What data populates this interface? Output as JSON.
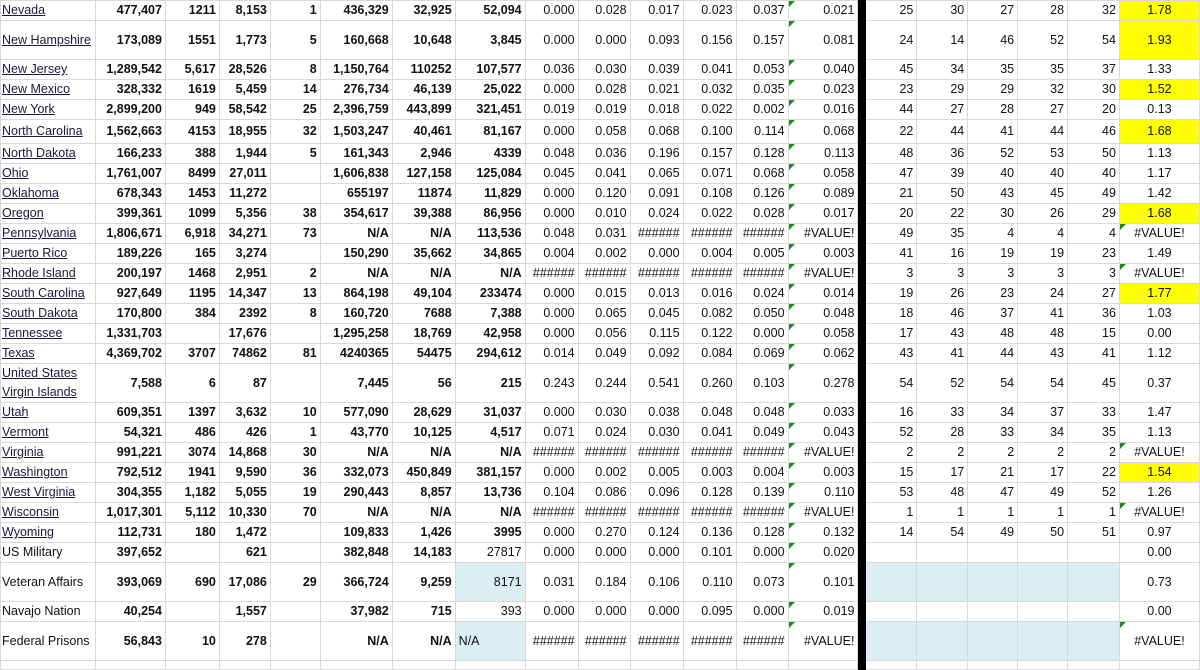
{
  "sheet": {
    "highlight_color": "#ffff00",
    "blank_fill_color": "#daeef3",
    "rows": [
      {
        "name": "Nevada",
        "link": true,
        "c": [
          "477,407",
          "1211",
          "8,153",
          "1",
          "436,329",
          "32,925",
          "52,094",
          "0.000",
          "0.028",
          "0.017",
          "0.023",
          "0.037",
          "0.021",
          "25",
          "30",
          "27",
          "28",
          "32",
          "1.78"
        ],
        "hl": true
      },
      {
        "name": "New Hampshire",
        "link": true,
        "tall": true,
        "c": [
          "173,089",
          "1551",
          "1,773",
          "5",
          "160,668",
          "10,648",
          "3,845",
          "0.000",
          "0.000",
          "0.093",
          "0.156",
          "0.157",
          "0.081",
          "24",
          "14",
          "46",
          "52",
          "54",
          "1.93"
        ],
        "hl": true
      },
      {
        "name": "New Jersey",
        "link": true,
        "c": [
          "1,289,542",
          "5,617",
          "28,526",
          "8",
          "1,150,764",
          "110252",
          "107,577",
          "0.036",
          "0.030",
          "0.039",
          "0.041",
          "0.053",
          "0.040",
          "45",
          "34",
          "35",
          "35",
          "37",
          "1.33"
        ]
      },
      {
        "name": "New Mexico",
        "link": true,
        "c": [
          "328,332",
          "1619",
          "5,459",
          "14",
          "276,734",
          "46,139",
          "25,022",
          "0.000",
          "0.028",
          "0.021",
          "0.032",
          "0.035",
          "0.023",
          "23",
          "29",
          "29",
          "32",
          "30",
          "1.52"
        ],
        "hl": true
      },
      {
        "name": "New York",
        "link": true,
        "c": [
          "2,899,200",
          "949",
          "58,542",
          "25",
          "2,396,759",
          "443,899",
          "321,451",
          "0.019",
          "0.019",
          "0.018",
          "0.022",
          "0.002",
          "0.016",
          "44",
          "27",
          "28",
          "27",
          "20",
          "0.13"
        ]
      },
      {
        "name": "North Carolina",
        "link": true,
        "nc": true,
        "c": [
          "1,562,663",
          "4153",
          "18,955",
          "32",
          "1,503,247",
          "40,461",
          "81,167",
          "0.000",
          "0.058",
          "0.068",
          "0.100",
          "0.114",
          "0.068",
          "22",
          "44",
          "41",
          "44",
          "46",
          "1.68"
        ],
        "hl": true
      },
      {
        "name": "North Dakota",
        "link": true,
        "c": [
          "166,233",
          "388",
          "1,944",
          "5",
          "161,343",
          "2,946",
          "4339",
          "0.048",
          "0.036",
          "0.196",
          "0.157",
          "0.128",
          "0.113",
          "48",
          "36",
          "52",
          "53",
          "50",
          "1.13"
        ]
      },
      {
        "name": "Ohio",
        "link": true,
        "c": [
          "1,761,007",
          "8499",
          "27,011",
          "",
          "1,606,838",
          "127,158",
          "125,084",
          "0.045",
          "0.041",
          "0.065",
          "0.071",
          "0.068",
          "0.058",
          "47",
          "39",
          "40",
          "40",
          "40",
          "1.17"
        ]
      },
      {
        "name": "Oklahoma",
        "link": true,
        "c": [
          "678,343",
          "1453",
          "11,272",
          "",
          "655197",
          "11874",
          "11,829",
          "0.000",
          "0.120",
          "0.091",
          "0.108",
          "0.126",
          "0.089",
          "21",
          "50",
          "43",
          "45",
          "49",
          "1.42"
        ]
      },
      {
        "name": "Oregon",
        "link": true,
        "c": [
          "399,361",
          "1099",
          "5,356",
          "38",
          "354,617",
          "39,388",
          "86,956",
          "0.000",
          "0.010",
          "0.024",
          "0.022",
          "0.028",
          "0.017",
          "20",
          "22",
          "30",
          "26",
          "29",
          "1.68"
        ],
        "hl": true
      },
      {
        "name": "Pennsylvania",
        "link": true,
        "c": [
          "1,806,671",
          "6,918",
          "34,271",
          "73",
          "N/A",
          "N/A",
          "113,536",
          "0.048",
          "0.031",
          "######",
          "######",
          "######",
          "#VALUE!",
          "49",
          "35",
          "4",
          "4",
          "4",
          "#VALUE!"
        ],
        "err": true
      },
      {
        "name": "Puerto Rico",
        "link": true,
        "c": [
          "189,226",
          "165",
          "3,274",
          "",
          "150,290",
          "35,662",
          "34,865",
          "0.004",
          "0.002",
          "0.000",
          "0.004",
          "0.005",
          "0.003",
          "41",
          "16",
          "19",
          "19",
          "23",
          "1.49"
        ]
      },
      {
        "name": "Rhode Island",
        "link": true,
        "c": [
          "200,197",
          "1468",
          "2,951",
          "2",
          "N/A",
          "N/A",
          "N/A",
          "######",
          "######",
          "######",
          "######",
          "######",
          "#VALUE!",
          "3",
          "3",
          "3",
          "3",
          "3",
          "#VALUE!"
        ],
        "err": true
      },
      {
        "name": "South Carolina",
        "link": true,
        "c": [
          "927,649",
          "1195",
          "14,347",
          "13",
          "864,198",
          "49,104",
          "233474",
          "0.000",
          "0.015",
          "0.013",
          "0.016",
          "0.024",
          "0.014",
          "19",
          "26",
          "23",
          "24",
          "27",
          "1.77"
        ],
        "hl": true
      },
      {
        "name": "South Dakota",
        "link": true,
        "c": [
          "170,800",
          "384",
          "2392",
          "8",
          "160,720",
          "7688",
          "7,388",
          "0.000",
          "0.065",
          "0.045",
          "0.082",
          "0.050",
          "0.048",
          "18",
          "46",
          "37",
          "41",
          "36",
          "1.03"
        ]
      },
      {
        "name": "Tennessee",
        "link": true,
        "c": [
          "1,331,703",
          "",
          "17,676",
          "",
          "1,295,258",
          "18,769",
          "42,958",
          "0.000",
          "0.056",
          "0.115",
          "0.122",
          "0.000",
          "0.058",
          "17",
          "43",
          "48",
          "48",
          "15",
          "0.00"
        ]
      },
      {
        "name": "Texas",
        "link": true,
        "c": [
          "4,369,702",
          "3707",
          "74862",
          "81",
          "4240365",
          "54475",
          "294,612",
          "0.014",
          "0.049",
          "0.092",
          "0.084",
          "0.069",
          "0.062",
          "43",
          "41",
          "44",
          "43",
          "41",
          "1.12"
        ]
      },
      {
        "name": "United States Virgin Islands",
        "link": true,
        "tall": true,
        "c": [
          "7,588",
          "6",
          "87",
          "",
          "7,445",
          "56",
          "215",
          "0.243",
          "0.244",
          "0.541",
          "0.260",
          "0.103",
          "0.278",
          "54",
          "52",
          "54",
          "54",
          "45",
          "0.37"
        ]
      },
      {
        "name": "Utah",
        "link": true,
        "c": [
          "609,351",
          "1397",
          "3,632",
          "10",
          "577,090",
          "28,629",
          "31,037",
          "0.000",
          "0.030",
          "0.038",
          "0.048",
          "0.048",
          "0.033",
          "16",
          "33",
          "34",
          "37",
          "33",
          "1.47"
        ]
      },
      {
        "name": "Vermont",
        "link": true,
        "c": [
          "54,321",
          "486",
          "426",
          "1",
          "43,770",
          "10,125",
          "4,517",
          "0.071",
          "0.024",
          "0.030",
          "0.041",
          "0.049",
          "0.043",
          "52",
          "28",
          "33",
          "34",
          "35",
          "1.13"
        ]
      },
      {
        "name": "Virginia",
        "link": true,
        "c": [
          "991,221",
          "3074",
          "14,868",
          "30",
          "N/A",
          "N/A",
          "N/A",
          "######",
          "######",
          "######",
          "######",
          "######",
          "#VALUE!",
          "2",
          "2",
          "2",
          "2",
          "2",
          "#VALUE!"
        ],
        "err": true
      },
      {
        "name": "Washington",
        "link": true,
        "c": [
          "792,512",
          "1941",
          "9,590",
          "36",
          "332,073",
          "450,849",
          "381,157",
          "0.000",
          "0.002",
          "0.005",
          "0.003",
          "0.004",
          "0.003",
          "15",
          "17",
          "21",
          "17",
          "22",
          "1.54"
        ],
        "hl": true
      },
      {
        "name": "West Virginia",
        "link": true,
        "c": [
          "304,355",
          "1,182",
          "5,055",
          "19",
          "290,443",
          "8,857",
          "13,736",
          "0.104",
          "0.086",
          "0.096",
          "0.128",
          "0.139",
          "0.110",
          "53",
          "48",
          "47",
          "49",
          "52",
          "1.26"
        ]
      },
      {
        "name": "Wisconsin",
        "link": true,
        "c": [
          "1,017,301",
          "5,112",
          "10,330",
          "70",
          "N/A",
          "N/A",
          "N/A",
          "######",
          "######",
          "######",
          "######",
          "######",
          "#VALUE!",
          "1",
          "1",
          "1",
          "1",
          "1",
          "#VALUE!"
        ],
        "err": true
      },
      {
        "name": "Wyoming",
        "link": true,
        "c": [
          "112,731",
          "180",
          "1,472",
          "",
          "109,833",
          "1,426",
          "3995",
          "0.000",
          "0.270",
          "0.124",
          "0.136",
          "0.128",
          "0.132",
          "14",
          "54",
          "49",
          "50",
          "51",
          "0.97"
        ]
      },
      {
        "name": "US Military",
        "link": false,
        "c": [
          "397,652",
          "",
          "621",
          "",
          "382,848",
          "14,183",
          "27817",
          "0.000",
          "0.000",
          "0.000",
          "0.101",
          "0.000",
          "0.020",
          "",
          "",
          "",
          "",
          "",
          "0.00"
        ],
        "light7": true
      },
      {
        "name": "Veteran Affairs",
        "link": false,
        "tall": true,
        "c": [
          "393,069",
          "690",
          "17,086",
          "29",
          "366,724",
          "9,259",
          "8171",
          "0.031",
          "0.184",
          "0.106",
          "0.110",
          "0.073",
          "0.101",
          "",
          "",
          "",
          "",
          "",
          "0.73"
        ],
        "light7": true,
        "blue7": true,
        "blueRank": true
      },
      {
        "name": "Navajo Nation",
        "link": false,
        "c": [
          "40,254",
          "",
          "1,557",
          "",
          "37,982",
          "715",
          "393",
          "0.000",
          "0.000",
          "0.000",
          "0.095",
          "0.000",
          "0.019",
          "",
          "",
          "",
          "",
          "",
          "0.00"
        ],
        "light7": true
      },
      {
        "name": "Federal Prisons",
        "link": false,
        "tall": true,
        "c": [
          "56,843",
          "10",
          "278",
          "",
          "N/A",
          "N/A",
          "N/A",
          "######",
          "######",
          "######",
          "######",
          "######",
          "#VALUE!",
          "",
          "",
          "",
          "",
          "",
          "#VALUE!"
        ],
        "light7": true,
        "blue7": true,
        "left7": true,
        "blueRank": true,
        "err": true
      }
    ]
  }
}
